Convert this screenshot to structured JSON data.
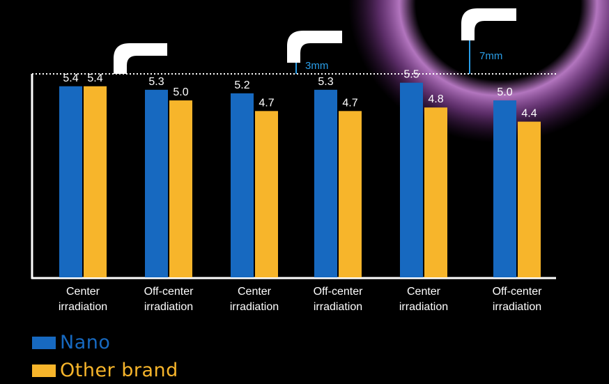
{
  "colors": {
    "nano": "#1769c0",
    "other": "#f7b52b",
    "axis": "#ffffff",
    "label": "#ffffff",
    "annotation": "#2a9ee8",
    "glow": "#c877d8"
  },
  "icons": [
    "curing-tip-icon",
    "curing-tip-icon",
    "curing-tip-icon"
  ],
  "annotations": {
    "distance_3mm": "3mm",
    "distance_7mm": "7mm"
  },
  "chart_data": {
    "type": "bar",
    "categories": [
      [
        "Center",
        "irradiation"
      ],
      [
        "Off-center",
        "irradiation"
      ],
      [
        "Center",
        "irradiation"
      ],
      [
        "Off-center",
        "irradiation"
      ],
      [
        "Center",
        "irradiation"
      ],
      [
        "Off-center",
        "irradiation"
      ]
    ],
    "series": [
      {
        "name": "Nano",
        "values": [
          5.4,
          5.3,
          5.2,
          5.3,
          5.5,
          5.0
        ]
      },
      {
        "name": "Other brand",
        "values": [
          5.4,
          5.0,
          4.7,
          4.7,
          4.8,
          4.4
        ]
      }
    ],
    "value_labels": [
      [
        "5.4",
        "5.3",
        "5.2",
        "5.3",
        "5.5",
        "5.0"
      ],
      [
        "5.4",
        "5.0",
        "4.7",
        "4.7",
        "4.8",
        "4.4"
      ]
    ],
    "ylim": [
      0,
      5.75
    ],
    "reference_line": 5.75,
    "grid": false,
    "legend_position": "bottom-left"
  }
}
